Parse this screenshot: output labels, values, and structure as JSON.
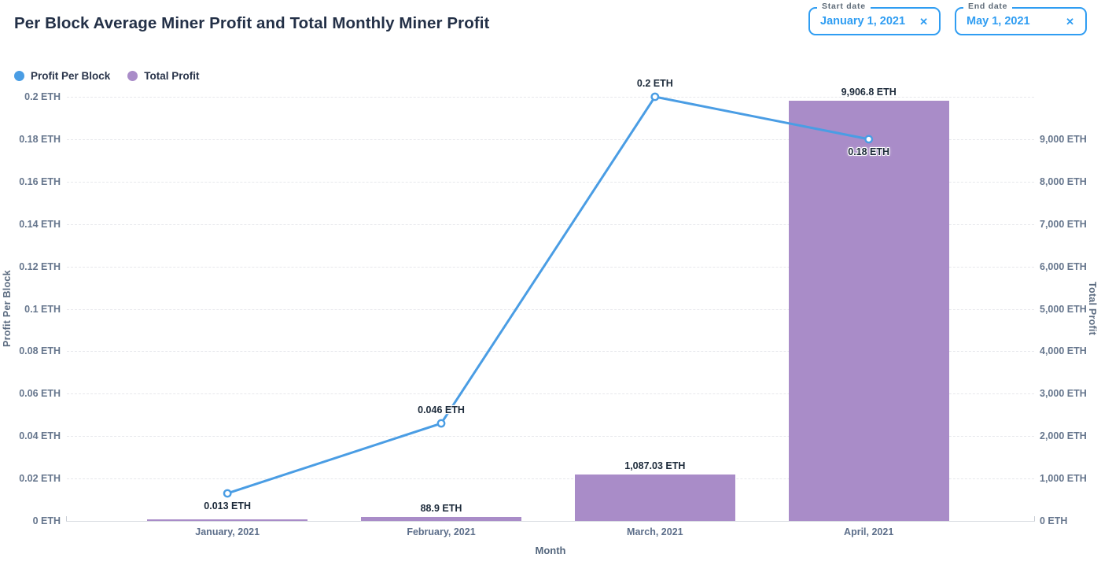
{
  "header": {
    "title": "Per Block Average Miner Profit and Total Monthly Miner Profit",
    "filters": {
      "start": {
        "label": "Start date",
        "value": "January 1, 2021",
        "clear_icon": "✕"
      },
      "end": {
        "label": "End date",
        "value": "May 1, 2021",
        "clear_icon": "✕"
      }
    }
  },
  "legend": [
    {
      "label": "Profit Per Block",
      "color": "#4a9de4"
    },
    {
      "label": "Total Profit",
      "color": "#a98cc8"
    }
  ],
  "chart_data": {
    "type": "line+bar combo",
    "categories": [
      "January, 2021",
      "February, 2021",
      "March, 2021",
      "April, 2021"
    ],
    "series": [
      {
        "name": "Profit Per Block",
        "type": "line",
        "axis": "left",
        "color": "#4a9de4",
        "values": [
          0.013,
          0.046,
          0.2,
          0.18
        ],
        "value_labels": [
          "0.013 ETH",
          "0.046 ETH",
          "0.2 ETH",
          "0.18 ETH"
        ],
        "label_positions": [
          "below",
          "above",
          "above",
          "below"
        ]
      },
      {
        "name": "Total Profit",
        "type": "bar",
        "axis": "right",
        "color": "#a98cc8",
        "values": [
          37,
          88.9,
          1087.03,
          9906.8
        ],
        "value_labels": [
          "",
          "88.9 ETH",
          "1,087.03 ETH",
          "9,906.8 ETH"
        ]
      }
    ],
    "xlabel": "Month",
    "left_axis": {
      "title": "Profit Per Block",
      "min": 0,
      "max": 0.2,
      "tick_step": 0.02,
      "tick_labels": [
        "0 ETH",
        "0.02 ETH",
        "0.04 ETH",
        "0.06 ETH",
        "0.08 ETH",
        "0.1 ETH",
        "0.12 ETH",
        "0.14 ETH",
        "0.16 ETH",
        "0.18 ETH",
        "0.2 ETH"
      ]
    },
    "right_axis": {
      "title": "Total Profit",
      "min": 0,
      "max": 10000,
      "tick_step": 1000,
      "tick_labels": [
        "0 ETH",
        "1,000 ETH",
        "2,000 ETH",
        "3,000 ETH",
        "4,000 ETH",
        "5,000 ETH",
        "6,000 ETH",
        "7,000 ETH",
        "8,000 ETH",
        "9,000 ETH"
      ]
    },
    "grid": "horizontal dashed",
    "legend_position": "top-left",
    "layout": {
      "category_centers_pct": [
        16.6,
        38.7,
        60.8,
        82.9
      ],
      "bar_width_pct": 16.6
    }
  }
}
